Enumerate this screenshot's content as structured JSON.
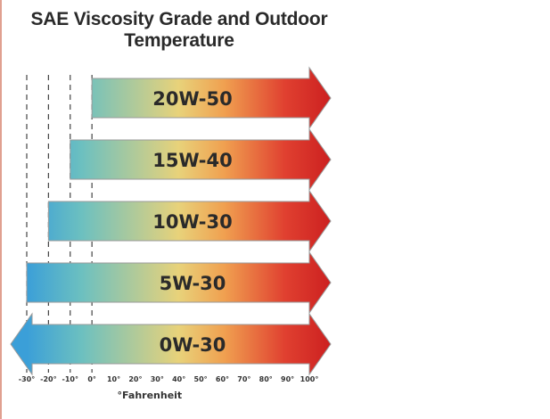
{
  "title_lines": [
    "SAE Viscosity Grade and Outdoor",
    "Temperature"
  ],
  "chart_data": {
    "type": "bar",
    "orientation": "horizontal",
    "title": "SAE Viscosity Grade and Outdoor Temperature",
    "xlabel": "°Fahrenheit",
    "xlim": [
      -30,
      100
    ],
    "xticks": [
      -30,
      -20,
      -10,
      0,
      10,
      20,
      30,
      40,
      50,
      60,
      70,
      80,
      90,
      100
    ],
    "xtick_labels": [
      "-30°",
      "-20°",
      "-10°",
      "0°",
      "10°",
      "20°",
      "30°",
      "40°",
      "50°",
      "60°",
      "70°",
      "80°",
      "90°",
      "100°"
    ],
    "unit": "°Fahrenheit",
    "grid": "dashed vertical lines at -30, -20, -10, 0",
    "bars": [
      {
        "label": "20W-50",
        "low": 0,
        "high": 100,
        "extends_below": false,
        "extends_above": true
      },
      {
        "label": "15W-40",
        "low": -10,
        "high": 100,
        "extends_below": false,
        "extends_above": true
      },
      {
        "label": "10W-30",
        "low": -20,
        "high": 100,
        "extends_below": false,
        "extends_above": true
      },
      {
        "label": "5W-30",
        "low": -30,
        "high": 100,
        "extends_below": false,
        "extends_above": true
      },
      {
        "label": "0W-30",
        "low": -30,
        "high": 100,
        "extends_below": true,
        "extends_above": true
      }
    ],
    "gradient_colors": [
      "#3b9fd8",
      "#6cc0c0",
      "#e8d27a",
      "#f0a050",
      "#e04030",
      "#cc2020"
    ]
  }
}
